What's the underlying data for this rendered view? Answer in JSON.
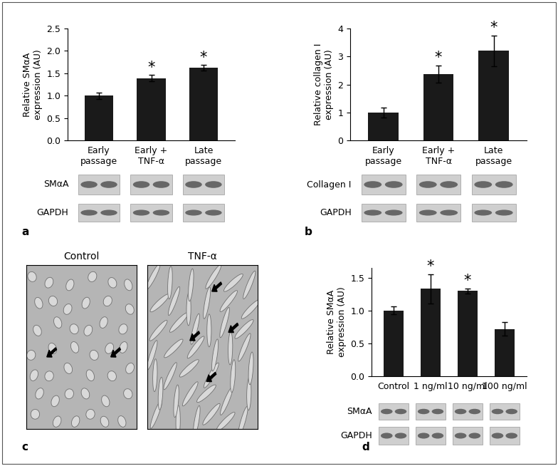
{
  "chart_data": [
    {
      "type": "bar",
      "panel": "a",
      "y_label": "Relative SMαA\nexpression (AU)",
      "categories": [
        "Early\npassage",
        "Early +\nTNF-α",
        "Late\npassage"
      ],
      "values": [
        1.0,
        1.39,
        1.62
      ],
      "errors": [
        0.07,
        0.07,
        0.06
      ],
      "significance": [
        null,
        "*",
        "*"
      ],
      "color": "#1a1a1a",
      "ylim": [
        0,
        2.5
      ],
      "yticks": [
        {
          "value": 0,
          "label": "0.0"
        },
        {
          "value": 0.5,
          "label": "0.5"
        },
        {
          "value": 1.0,
          "label": "1.0"
        },
        {
          "value": 1.5,
          "label": "1.5"
        },
        {
          "value": 2.0,
          "label": "2.0"
        },
        {
          "value": 2.5,
          "label": "2.5"
        }
      ],
      "blots": [
        "SMαA",
        "GAPDH"
      ]
    },
    {
      "type": "bar",
      "panel": "b",
      "y_label": "Relative collagen I\nexpression (AU)",
      "categories": [
        "Early\npassage",
        "Early +\nTNF-α",
        "Late\npassage"
      ],
      "values": [
        1.0,
        2.37,
        3.2
      ],
      "errors": [
        0.18,
        0.3,
        0.55
      ],
      "significance": [
        null,
        "*",
        "*"
      ],
      "color": "#1a1a1a",
      "ylim": [
        0,
        4
      ],
      "yticks": [
        0,
        1,
        2,
        3,
        4
      ],
      "blots": [
        "Collagen I",
        "GAPDH"
      ]
    },
    {
      "type": "bar",
      "panel": "d",
      "y_label": "Relative SMαA\nexpression (AU)",
      "categories": [
        "Control",
        "1 ng/ml",
        "10 ng/ml",
        "100 ng/ml"
      ],
      "values": [
        1.0,
        1.33,
        1.3,
        0.72
      ],
      "errors": [
        0.06,
        0.22,
        0.04,
        0.1
      ],
      "significance": [
        null,
        "*",
        "*",
        null
      ],
      "color": "#1a1a1a",
      "ylim": [
        0,
        1.65
      ],
      "yticks": [
        {
          "value": 0,
          "label": "0.0"
        },
        {
          "value": 0.5,
          "label": "0.5"
        },
        {
          "value": 1.0,
          "label": "1.0"
        },
        {
          "value": 1.5,
          "label": "1.5"
        }
      ],
      "blots": [
        "SMαA",
        "GAPDH"
      ]
    }
  ],
  "images": {
    "panel": "c",
    "titles": [
      "Control",
      "TNF-α"
    ]
  }
}
